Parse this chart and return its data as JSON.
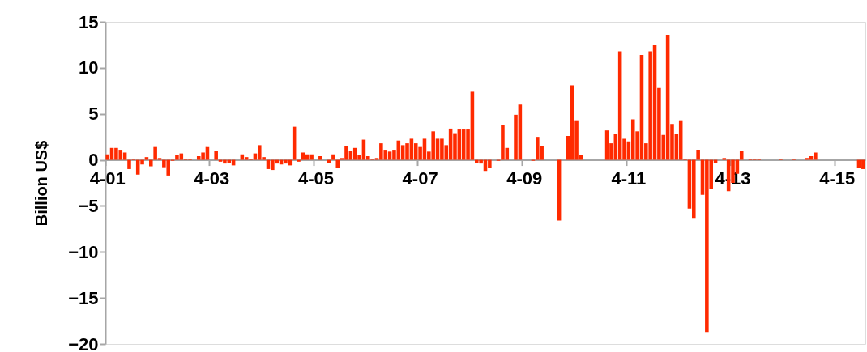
{
  "chart_data": {
    "type": "bar",
    "ylabel": "Billion US$",
    "categories": [
      "4-01",
      null,
      null,
      null,
      null,
      null,
      null,
      null,
      null,
      null,
      null,
      null,
      null,
      null,
      null,
      null,
      null,
      null,
      null,
      null,
      null,
      null,
      null,
      null,
      "4-03",
      null,
      null,
      null,
      null,
      null,
      null,
      null,
      null,
      null,
      null,
      null,
      null,
      null,
      null,
      null,
      null,
      null,
      null,
      null,
      null,
      null,
      null,
      null,
      "4-05",
      null,
      null,
      null,
      null,
      null,
      null,
      null,
      null,
      null,
      null,
      null,
      null,
      null,
      null,
      null,
      null,
      null,
      null,
      null,
      null,
      null,
      null,
      null,
      "4-07",
      null,
      null,
      null,
      null,
      null,
      null,
      null,
      null,
      null,
      null,
      null,
      null,
      null,
      null,
      null,
      null,
      null,
      null,
      null,
      null,
      null,
      null,
      null,
      "4-09",
      null,
      null,
      null,
      null,
      null,
      null,
      null,
      null,
      null,
      null,
      null,
      null,
      null,
      null,
      null,
      null,
      null,
      null,
      null,
      null,
      null,
      null,
      null,
      "4-11",
      null,
      null,
      null,
      null,
      null,
      null,
      null,
      null,
      null,
      null,
      null,
      null,
      null,
      null,
      null,
      null,
      null,
      null,
      null,
      null,
      null,
      null,
      null,
      "4-13",
      null,
      null,
      null,
      null,
      null,
      null,
      null,
      null,
      null,
      null,
      null,
      null,
      null,
      null,
      null,
      null,
      null,
      null,
      null,
      null,
      null,
      null,
      null,
      "4-15",
      null,
      null,
      null,
      null,
      null,
      null
    ],
    "series": [
      {
        "color": "#ff2a00",
        "values": [
          0.6,
          1.3,
          1.3,
          1.1,
          0.8,
          -1.0,
          0.1,
          -1.6,
          -0.5,
          0.3,
          -0.7,
          1.4,
          0.2,
          -0.8,
          -1.7,
          -0.1,
          0.5,
          0.7,
          0.1,
          0.1,
          0,
          0.4,
          0.8,
          1.4,
          0,
          1.0,
          -0.2,
          -0.4,
          -0.3,
          -0.6,
          0,
          0.6,
          0.3,
          0.1,
          0.7,
          1.6,
          0.3,
          -1.0,
          -1.1,
          -0.4,
          -0.5,
          -0.4,
          -0.6,
          3.6,
          -0.2,
          0.8,
          0.6,
          0.6,
          0,
          0.4,
          0,
          -0.3,
          0.6,
          -0.9,
          0.2,
          1.5,
          1.0,
          1.3,
          0.5,
          2.2,
          0.4,
          0.1,
          0.2,
          1.8,
          1.1,
          0.9,
          1.1,
          2.1,
          1.6,
          1.8,
          2.3,
          1.8,
          1.4,
          2.3,
          0.9,
          3.1,
          2.3,
          2.3,
          1.6,
          3.4,
          2.9,
          3.3,
          3.3,
          3.3,
          7.4,
          -0.3,
          -0.4,
          -1.2,
          -0.9,
          0,
          -0.1,
          3.8,
          1.3,
          0,
          4.9,
          6.0,
          0,
          0,
          -0.1,
          2.5,
          1.5,
          0,
          0,
          0,
          -6.6,
          0,
          2.6,
          8.1,
          4.3,
          0.5,
          0,
          0,
          0,
          0,
          0,
          3.2,
          1.8,
          2.8,
          11.8,
          2.3,
          2.0,
          4.4,
          3.1,
          11.4,
          1.8,
          11.8,
          12.5,
          7.8,
          2.7,
          13.6,
          3.9,
          2.8,
          4.3,
          0.1,
          -5.3,
          -6.4,
          1.1,
          -3.8,
          -18.7,
          -3.2,
          -0.3,
          0,
          0.2,
          -3.4,
          -2.5,
          -1.5,
          1.0,
          0,
          0.1,
          0.1,
          0.1,
          0,
          0,
          0,
          0,
          0.1,
          0,
          0,
          0.1,
          0,
          0,
          0.2,
          0.4,
          0.8,
          0,
          0,
          0,
          0,
          0,
          0,
          0,
          0,
          0,
          -0.9,
          -1.0
        ]
      }
    ],
    "ylim": [
      -20,
      15
    ],
    "yticks": [
      -20,
      -15,
      -10,
      -5,
      0,
      5,
      10,
      15
    ],
    "grid": false,
    "legend": false
  }
}
